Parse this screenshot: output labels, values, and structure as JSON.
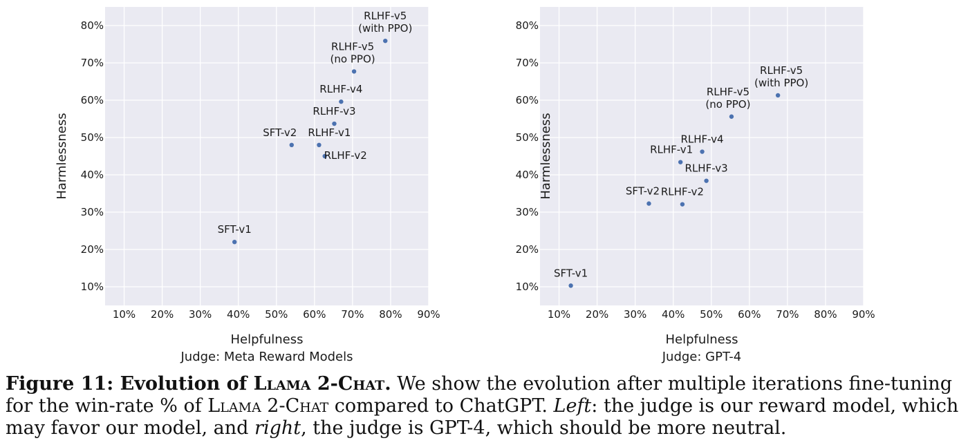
{
  "chart_data": [
    {
      "type": "scatter",
      "xlabel": "Helpfulness",
      "xlabel_sub": "Judge: Meta Reward Models",
      "ylabel": "Harmlessness",
      "xlim": [
        5,
        90
      ],
      "ylim": [
        5,
        85
      ],
      "xticks": [
        10,
        20,
        30,
        40,
        50,
        60,
        70,
        80,
        90
      ],
      "yticks": [
        10,
        20,
        30,
        40,
        50,
        60,
        70,
        80
      ],
      "tick_format": "%",
      "grid": true,
      "color": "#4c72b0",
      "points": [
        {
          "label": "SFT-v1",
          "x": 39,
          "y": 22
        },
        {
          "label": "SFT-v2",
          "x": 54,
          "y": 48
        },
        {
          "label": "RLHF-v1",
          "x": 61.2,
          "y": 48
        },
        {
          "label": "RLHF-v2",
          "x": 62.7,
          "y": 45
        },
        {
          "label": "RLHF-v3",
          "x": 65.2,
          "y": 53.7
        },
        {
          "label": "RLHF-v4",
          "x": 67,
          "y": 59.6
        },
        {
          "label": "RLHF-v5\n(no PPO)",
          "x": 70.4,
          "y": 67.7
        },
        {
          "label": "RLHF-v5\n(with PPO)",
          "x": 78.6,
          "y": 75.9
        }
      ]
    },
    {
      "type": "scatter",
      "xlabel": "Helpfulness",
      "xlabel_sub": "Judge: GPT-4",
      "ylabel": "Harmlessness",
      "xlim": [
        5,
        90
      ],
      "ylim": [
        5,
        85
      ],
      "xticks": [
        10,
        20,
        30,
        40,
        50,
        60,
        70,
        80,
        90
      ],
      "yticks": [
        10,
        20,
        30,
        40,
        50,
        60,
        70,
        80
      ],
      "tick_format": "%",
      "grid": true,
      "color": "#4c72b0",
      "points": [
        {
          "label": "SFT-v1",
          "x": 13.1,
          "y": 10.3
        },
        {
          "label": "SFT-v2",
          "x": 33.6,
          "y": 32.3
        },
        {
          "label": "RLHF-v1",
          "x": 41.9,
          "y": 43.4
        },
        {
          "label": "RLHF-v2",
          "x": 42.4,
          "y": 32.1
        },
        {
          "label": "RLHF-v3",
          "x": 48.7,
          "y": 38.4
        },
        {
          "label": "RLHF-v4",
          "x": 47.6,
          "y": 46.2
        },
        {
          "label": "RLHF-v5\n(no PPO)",
          "x": 55.3,
          "y": 55.6
        },
        {
          "label": "RLHF-v5\n(with PPO)",
          "x": 67.5,
          "y": 61.3
        }
      ]
    }
  ],
  "caption": {
    "lead_1": "Figure 11: Evolution of ",
    "lead_sc": "Llama 2-Chat",
    "lead_2": ".",
    "text_1": " We show the evolution after multiple iterations fine-tuning for the win-rate % of ",
    "text_sc": "Llama 2-Chat",
    "text_2": " compared to ChatGPT. ",
    "left_word": "Left",
    "text_3": ": the judge is our reward model, which may favor our model, and ",
    "right_word": "right",
    "text_4": ", the judge is GPT-4, which should be more neutral."
  }
}
